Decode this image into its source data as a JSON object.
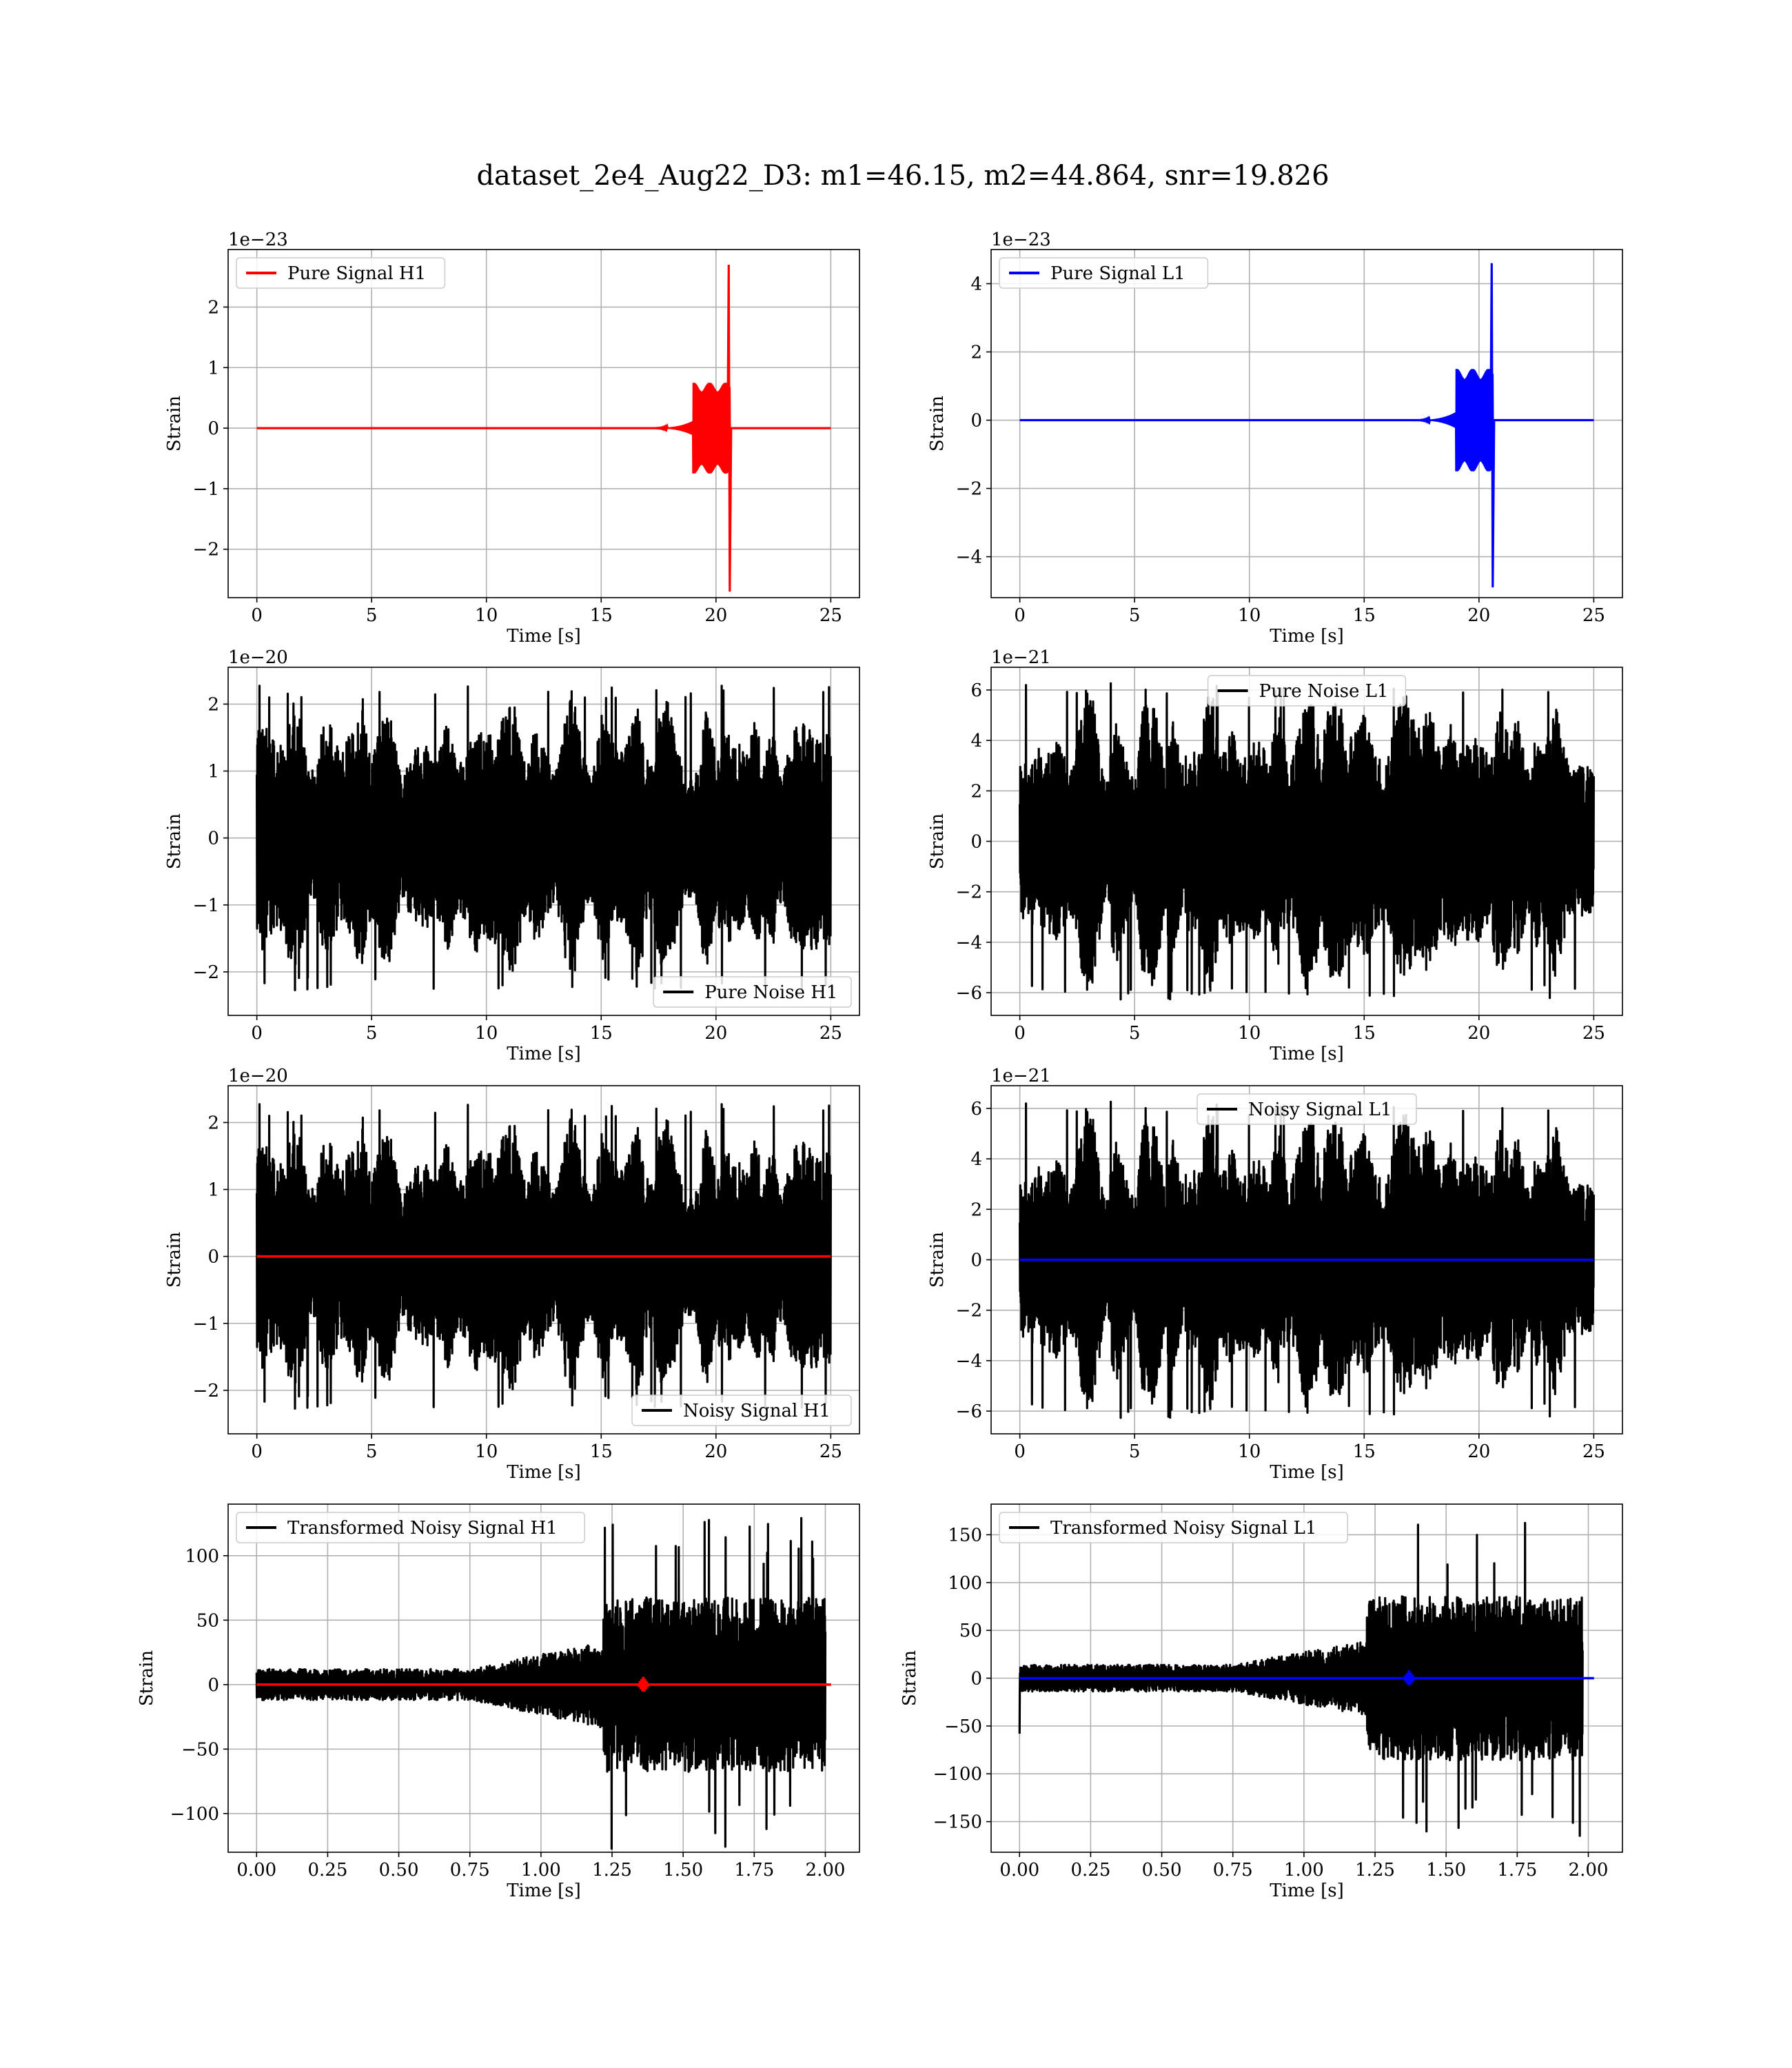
{
  "figure": {
    "title": "dataset_2e4_Aug22_D3: m1=46.15, m2=44.864, snr=19.826"
  },
  "chart_data": [
    {
      "id": "pure-signal-h1",
      "type": "line",
      "kind": "chirp",
      "xlabel": "Time [s]",
      "ylabel": "Strain",
      "offset_text": "1e−23",
      "xlim": [
        -1.25,
        26.25
      ],
      "ylim": [
        -2.8,
        2.95
      ],
      "xticks": [
        0,
        5,
        10,
        15,
        20,
        25
      ],
      "xtick_labels": [
        "0",
        "5",
        "10",
        "15",
        "20",
        "25"
      ],
      "yticks": [
        -2,
        -1,
        0,
        1,
        2
      ],
      "ytick_labels": [
        "−2",
        "−1",
        "0",
        "1",
        "2"
      ],
      "legend": "upper left",
      "series": [
        {
          "name": "Pure Signal H1",
          "color": "#ff0000",
          "x_start": 0,
          "x_end": 25,
          "signal_onset": 17.0,
          "signal_rise": 19.0,
          "merger_time": 20.6,
          "inspiral_amplitude": 0.75,
          "merger_peak": 2.7,
          "merger_trough": -2.7
        }
      ]
    },
    {
      "id": "pure-signal-l1",
      "type": "line",
      "kind": "chirp",
      "xlabel": "Time [s]",
      "ylabel": "Strain",
      "offset_text": "1e−23",
      "xlim": [
        -1.25,
        26.25
      ],
      "ylim": [
        -5.2,
        5.0
      ],
      "xticks": [
        0,
        5,
        10,
        15,
        20,
        25
      ],
      "xtick_labels": [
        "0",
        "5",
        "10",
        "15",
        "20",
        "25"
      ],
      "yticks": [
        -4,
        -2,
        0,
        2,
        4
      ],
      "ytick_labels": [
        "−4",
        "−2",
        "0",
        "2",
        "4"
      ],
      "legend": "upper left",
      "series": [
        {
          "name": "Pure Signal L1",
          "color": "#0000ff",
          "x_start": 0,
          "x_end": 25,
          "signal_onset": 17.0,
          "signal_rise": 19.0,
          "merger_time": 20.6,
          "inspiral_amplitude": 1.5,
          "merger_peak": 4.6,
          "merger_trough": -4.9
        }
      ]
    },
    {
      "id": "pure-noise-h1",
      "type": "line",
      "kind": "noise",
      "xlabel": "Time [s]",
      "ylabel": "Strain",
      "offset_text": "1e−20",
      "xlim": [
        -1.25,
        26.25
      ],
      "ylim": [
        -2.65,
        2.55
      ],
      "xticks": [
        0,
        5,
        10,
        15,
        20,
        25
      ],
      "xtick_labels": [
        "0",
        "5",
        "10",
        "15",
        "20",
        "25"
      ],
      "yticks": [
        -2,
        -1,
        0,
        1,
        2
      ],
      "ytick_labels": [
        "−2",
        "−1",
        "0",
        "1",
        "2"
      ],
      "legend": "lower right",
      "series": [
        {
          "name": "Pure Noise H1",
          "color": "#000000",
          "x_start": 0,
          "x_end": 25,
          "peak_amplitude": 2.3,
          "seed": 11
        }
      ]
    },
    {
      "id": "pure-noise-l1",
      "type": "line",
      "kind": "noise",
      "xlabel": "Time [s]",
      "ylabel": "Strain",
      "offset_text": "1e−21",
      "xlim": [
        -1.25,
        26.25
      ],
      "ylim": [
        -6.9,
        6.9
      ],
      "xticks": [
        0,
        5,
        10,
        15,
        20,
        25
      ],
      "xtick_labels": [
        "0",
        "5",
        "10",
        "15",
        "20",
        "25"
      ],
      "yticks": [
        -6,
        -4,
        -2,
        0,
        2,
        4,
        6
      ],
      "ytick_labels": [
        "−6",
        "−4",
        "−2",
        "0",
        "2",
        "4",
        "6"
      ],
      "legend": "upper center",
      "series": [
        {
          "name": "Pure Noise L1",
          "color": "#000000",
          "x_start": 0,
          "x_end": 25,
          "peak_amplitude": 6.3,
          "seed": 23
        }
      ]
    },
    {
      "id": "noisy-signal-h1",
      "type": "line",
      "kind": "noise",
      "xlabel": "Time [s]",
      "ylabel": "Strain",
      "offset_text": "1e−20",
      "xlim": [
        -1.25,
        26.25
      ],
      "ylim": [
        -2.65,
        2.55
      ],
      "xticks": [
        0,
        5,
        10,
        15,
        20,
        25
      ],
      "xtick_labels": [
        "0",
        "5",
        "10",
        "15",
        "20",
        "25"
      ],
      "yticks": [
        -2,
        -1,
        0,
        1,
        2
      ],
      "ytick_labels": [
        "−2",
        "−1",
        "0",
        "1",
        "2"
      ],
      "legend": "lower right",
      "series": [
        {
          "name": "Noisy Signal H1",
          "color": "#000000",
          "x_start": 0,
          "x_end": 25,
          "peak_amplitude": 2.3,
          "seed": 11
        }
      ],
      "overlay": {
        "color": "#ff0000",
        "x_start": 0,
        "x_end": 25,
        "value": 0
      }
    },
    {
      "id": "noisy-signal-l1",
      "type": "line",
      "kind": "noise",
      "xlabel": "Time [s]",
      "ylabel": "Strain",
      "offset_text": "1e−21",
      "xlim": [
        -1.25,
        26.25
      ],
      "ylim": [
        -6.9,
        6.9
      ],
      "xticks": [
        0,
        5,
        10,
        15,
        20,
        25
      ],
      "xtick_labels": [
        "0",
        "5",
        "10",
        "15",
        "20",
        "25"
      ],
      "yticks": [
        -6,
        -4,
        -2,
        0,
        2,
        4,
        6
      ],
      "ytick_labels": [
        "−6",
        "−4",
        "−2",
        "0",
        "2",
        "4",
        "6"
      ],
      "legend": "upper center",
      "series": [
        {
          "name": "Noisy Signal L1",
          "color": "#000000",
          "x_start": 0,
          "x_end": 25,
          "peak_amplitude": 6.3,
          "seed": 23
        }
      ],
      "overlay": {
        "color": "#0000ff",
        "x_start": 0,
        "x_end": 25,
        "value": 0
      }
    },
    {
      "id": "transformed-noisy-signal-h1",
      "type": "line",
      "kind": "transformed",
      "xlabel": "Time [s]",
      "ylabel": "Strain",
      "offset_text": "",
      "xlim": [
        -0.1,
        2.12
      ],
      "ylim": [
        -130,
        140
      ],
      "xticks": [
        0,
        0.25,
        0.5,
        0.75,
        1.0,
        1.25,
        1.5,
        1.75,
        2.0
      ],
      "xtick_labels": [
        "0.00",
        "0.25",
        "0.50",
        "0.75",
        "1.00",
        "1.25",
        "1.50",
        "1.75",
        "2.00"
      ],
      "yticks": [
        -100,
        -50,
        0,
        50,
        100
      ],
      "ytick_labels": [
        "−100",
        "−50",
        "0",
        "50",
        "100"
      ],
      "legend": "upper left",
      "series": [
        {
          "name": "Transformed Noisy Signal H1",
          "color": "#000000",
          "x_start": 0,
          "x_end": 2.0,
          "quiet_amplitude": 12,
          "ramp_start": 0.75,
          "burst_start": 1.22,
          "burst_end": 1.98,
          "burst_peak_max": 130,
          "burst_peak_min": -120,
          "seed": 5
        }
      ],
      "overlay": {
        "color": "#ff0000",
        "x_start": 0,
        "x_end": 2.02,
        "value": 0,
        "marker_x": 1.36,
        "marker_amp": 6
      }
    },
    {
      "id": "transformed-noisy-signal-l1",
      "type": "line",
      "kind": "transformed",
      "xlabel": "Time [s]",
      "ylabel": "Strain",
      "offset_text": "",
      "xlim": [
        -0.1,
        2.12
      ],
      "ylim": [
        -182,
        182
      ],
      "xticks": [
        0,
        0.25,
        0.5,
        0.75,
        1.0,
        1.25,
        1.5,
        1.75,
        2.0
      ],
      "xtick_labels": [
        "0.00",
        "0.25",
        "0.50",
        "0.75",
        "1.00",
        "1.25",
        "1.50",
        "1.75",
        "2.00"
      ],
      "yticks": [
        -150,
        -100,
        -50,
        0,
        50,
        100,
        150
      ],
      "ytick_labels": [
        "−150",
        "−100",
        "−50",
        "0",
        "50",
        "100",
        "150"
      ],
      "legend": "upper left",
      "series": [
        {
          "name": "Transformed Noisy Signal L1",
          "color": "#000000",
          "x_start": 0,
          "x_end": 1.98,
          "quiet_amplitude": 14,
          "ramp_start": 0.75,
          "burst_start": 1.22,
          "burst_end": 1.98,
          "burst_peak_max": 165,
          "burst_peak_min": -165,
          "initial_spike": -58,
          "seed": 9
        }
      ],
      "overlay": {
        "color": "#0000ff",
        "x_start": 0,
        "x_end": 2.02,
        "value": 0,
        "marker_x": 1.37,
        "marker_amp": 8
      }
    }
  ]
}
